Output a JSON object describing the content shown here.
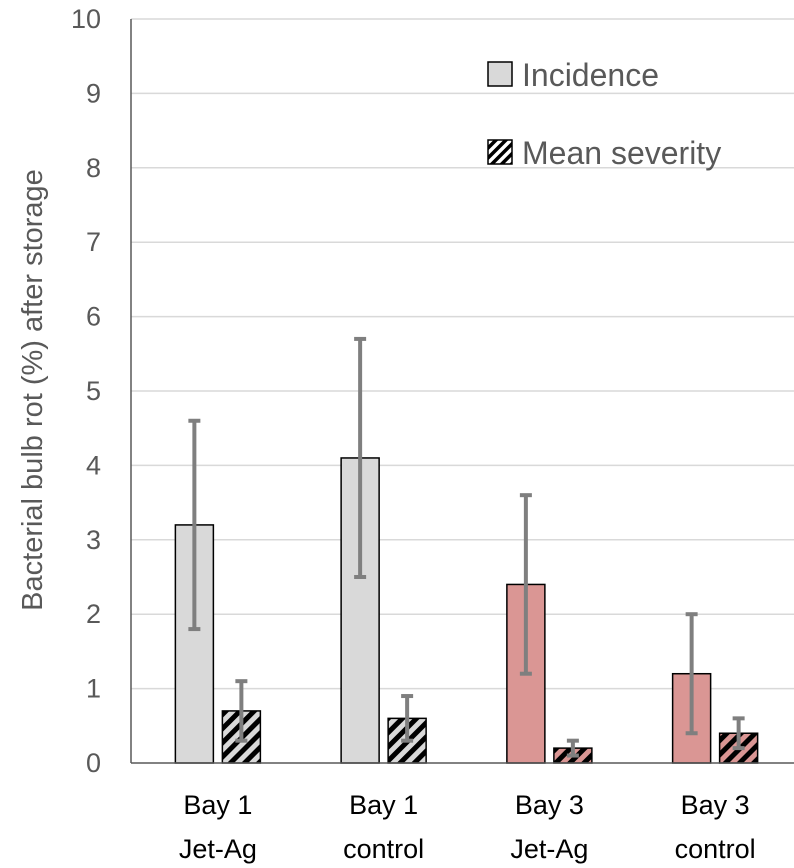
{
  "chart_data": {
    "type": "bar",
    "ylabel": "Bacterial bulb rot (%) after storage",
    "xlabel": "",
    "ylim": [
      0,
      10
    ],
    "yticks": [
      0,
      1,
      2,
      3,
      4,
      5,
      6,
      7,
      8,
      9,
      10
    ],
    "grid": true,
    "legend_position": "top-right",
    "categories": [
      {
        "line1": "Bay 1",
        "line2": "Jet-Ag"
      },
      {
        "line1": "Bay 1",
        "line2": "control"
      },
      {
        "line1": "Bay 3",
        "line2": "Jet-Ag"
      },
      {
        "line1": "Bay 3",
        "line2": "control"
      }
    ],
    "category_colors": [
      "#d9d9d9",
      "#d9d9d9",
      "#da9694",
      "#da9694"
    ],
    "series": [
      {
        "name": "Incidence",
        "pattern": "solid",
        "values": [
          3.2,
          4.1,
          2.4,
          1.2
        ],
        "error": [
          1.4,
          1.6,
          1.2,
          0.8
        ]
      },
      {
        "name": "Mean severity",
        "pattern": "diagonal-hatch",
        "values": [
          0.7,
          0.6,
          0.2,
          0.4
        ],
        "error": [
          0.4,
          0.3,
          0.1,
          0.2
        ]
      }
    ],
    "colors": {
      "hatch": "#000000",
      "error_bar": "#7f7f7f",
      "grid": "#d9d9d9",
      "axis": "#595959",
      "legend_fill": "#d9d9d9"
    }
  }
}
